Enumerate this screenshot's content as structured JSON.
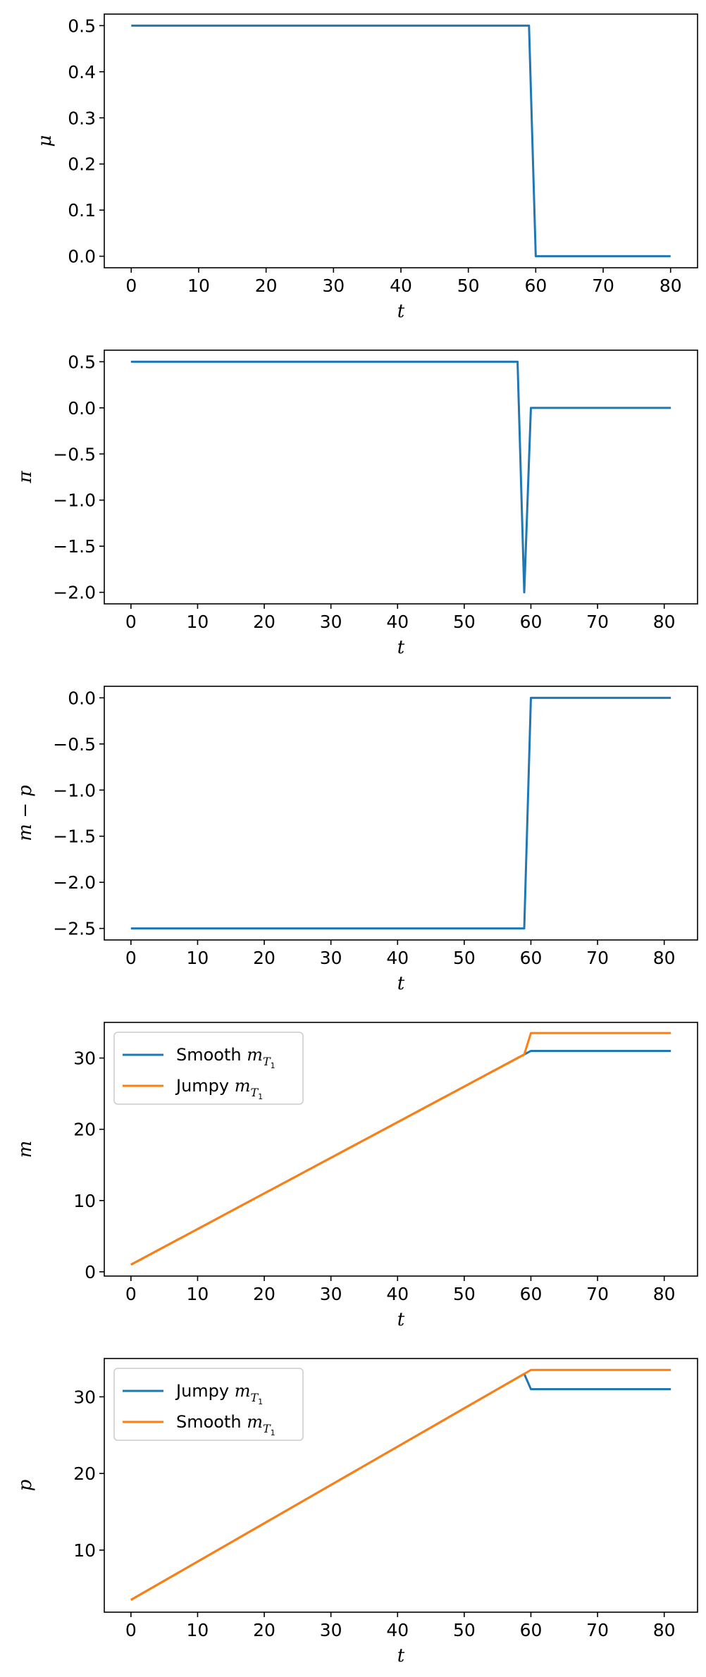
{
  "colors": {
    "blue": "#1f77b4",
    "orange": "#ff7f0e"
  },
  "chart_data": [
    {
      "type": "line",
      "xlabel": "t",
      "ylabel": "μ",
      "xlim": [
        -4,
        84
      ],
      "ylim": [
        -0.025,
        0.525
      ],
      "xticks": [
        0,
        10,
        20,
        30,
        40,
        50,
        60,
        70,
        80
      ],
      "yticks": [
        0.0,
        0.1,
        0.2,
        0.3,
        0.4,
        0.5
      ],
      "ytick_labels": [
        "0.0",
        "0.1",
        "0.2",
        "0.3",
        "0.4",
        "0.5"
      ],
      "grid": false,
      "legend": null,
      "series": [
        {
          "color": "#1f77b4",
          "points": [
            [
              0,
              0.5
            ],
            [
              59,
              0.5
            ],
            [
              60,
              0.0
            ],
            [
              80,
              0.0
            ]
          ]
        }
      ]
    },
    {
      "type": "line",
      "xlabel": "t",
      "ylabel": "π",
      "xlim": [
        -4,
        85
      ],
      "ylim": [
        -2.125,
        0.625
      ],
      "xticks": [
        0,
        10,
        20,
        30,
        40,
        50,
        60,
        70,
        80
      ],
      "yticks": [
        0.5,
        0.0,
        -0.5,
        -1.0,
        -1.5,
        -2.0
      ],
      "ytick_labels": [
        "0.5",
        "0.0",
        "−0.5",
        "−1.0",
        "−1.5",
        "−2.0"
      ],
      "grid": false,
      "legend": null,
      "series": [
        {
          "color": "#1f77b4",
          "points": [
            [
              0,
              0.5
            ],
            [
              58,
              0.5
            ],
            [
              59,
              -2.0
            ],
            [
              60,
              0.0
            ],
            [
              81,
              0.0
            ]
          ]
        }
      ]
    },
    {
      "type": "line",
      "xlabel": "t",
      "ylabel": "m − p",
      "xlim": [
        -4,
        85
      ],
      "ylim": [
        -2.625,
        0.125
      ],
      "xticks": [
        0,
        10,
        20,
        30,
        40,
        50,
        60,
        70,
        80
      ],
      "yticks": [
        0.0,
        -0.5,
        -1.0,
        -1.5,
        -2.0,
        -2.5
      ],
      "ytick_labels": [
        "0.0",
        "−0.5",
        "−1.0",
        "−1.5",
        "−2.0",
        "−2.5"
      ],
      "grid": false,
      "legend": null,
      "series": [
        {
          "color": "#1f77b4",
          "points": [
            [
              0,
              -2.5
            ],
            [
              59,
              -2.5
            ],
            [
              60,
              0.0
            ],
            [
              81,
              0.0
            ]
          ]
        }
      ]
    },
    {
      "type": "line",
      "xlabel": "t",
      "ylabel": "m",
      "xlim": [
        -4,
        85
      ],
      "ylim": [
        -0.6,
        35.0
      ],
      "xticks": [
        0,
        10,
        20,
        30,
        40,
        50,
        60,
        70,
        80
      ],
      "yticks": [
        0,
        10,
        20,
        30
      ],
      "ytick_labels": [
        "0",
        "10",
        "20",
        "30"
      ],
      "grid": false,
      "legend": "upper-left",
      "series": [
        {
          "name": "Smooth",
          "name_math": "m",
          "name_sub": "T",
          "name_subsub": "1",
          "color": "#1f77b4",
          "points": [
            [
              0,
              1.0
            ],
            [
              59,
              30.5
            ],
            [
              60,
              31.0
            ],
            [
              81,
              31.0
            ]
          ]
        },
        {
          "name": "Jumpy",
          "name_math": "m",
          "name_sub": "T",
          "name_subsub": "1",
          "color": "#ff7f0e",
          "points": [
            [
              0,
              1.0
            ],
            [
              59,
              30.5
            ],
            [
              60,
              33.5
            ],
            [
              81,
              33.5
            ]
          ]
        }
      ]
    },
    {
      "type": "line",
      "xlabel": "t",
      "ylabel": "p",
      "xlim": [
        -4,
        85
      ],
      "ylim": [
        1.9,
        35.0
      ],
      "xticks": [
        0,
        10,
        20,
        30,
        40,
        50,
        60,
        70,
        80
      ],
      "yticks": [
        10,
        20,
        30
      ],
      "ytick_labels": [
        "10",
        "20",
        "30"
      ],
      "grid": false,
      "legend": "upper-left",
      "series": [
        {
          "name": "Jumpy",
          "name_math": "m",
          "name_sub": "T",
          "name_subsub": "1",
          "color": "#1f77b4",
          "points": [
            [
              0,
              3.5
            ],
            [
              59,
              33.0
            ],
            [
              60,
              31.0
            ],
            [
              81,
              31.0
            ]
          ]
        },
        {
          "name": "Smooth",
          "name_math": "m",
          "name_sub": "T",
          "name_subsub": "1",
          "color": "#ff7f0e",
          "points": [
            [
              0,
              3.5
            ],
            [
              59,
              33.0
            ],
            [
              60,
              33.5
            ],
            [
              81,
              33.5
            ]
          ]
        }
      ]
    }
  ]
}
